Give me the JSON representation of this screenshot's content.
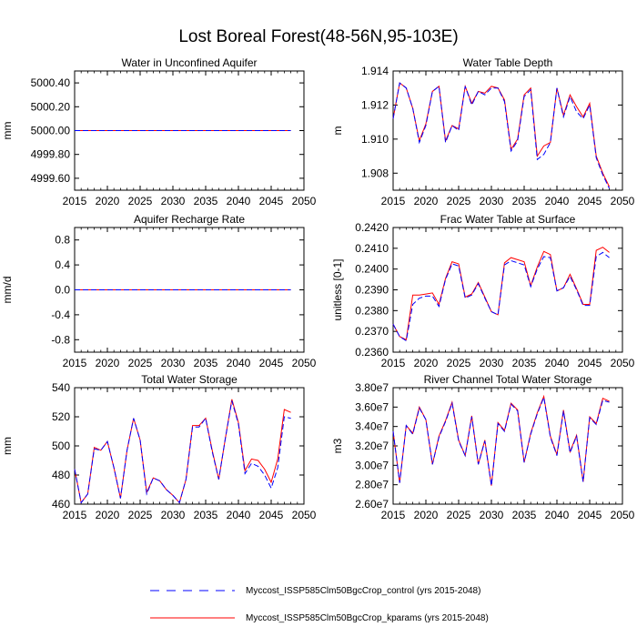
{
  "title": "Lost Boreal Forest(48-56N,95-103E)",
  "colors": {
    "control": "#0000ff",
    "kparams": "#ff0000",
    "axis": "#000000"
  },
  "legend": [
    {
      "label": "Myccost_ISSP585Clm50BgcCrop_control (yrs 2015-2048)",
      "color": "#0000ff",
      "dash": true
    },
    {
      "label": "Myccost_ISSP585Clm50BgcCrop_kparams (yrs 2015-2048)",
      "color": "#ff0000",
      "dash": false
    }
  ],
  "chart_data": [
    {
      "type": "line",
      "title": "Water in Unconfined Aquifer",
      "ylabel": "mm",
      "xlim": [
        2015,
        2050
      ],
      "xticks": [
        2015,
        2020,
        2025,
        2030,
        2035,
        2040,
        2045,
        2050
      ],
      "xtick_labels": [
        "2015",
        "2020",
        "2025",
        "2030",
        "2035",
        "2040",
        "2045",
        "2050"
      ],
      "ylim": [
        4999.5,
        5000.5
      ],
      "yticks": [
        4999.6,
        4999.8,
        5000.0,
        5000.2,
        5000.4
      ],
      "ytick_labels": [
        "4999.60",
        "4999.80",
        "5000.00",
        "5000.20",
        "5000.40"
      ],
      "x": [
        2015,
        2016,
        2017,
        2018,
        2019,
        2020,
        2021,
        2022,
        2023,
        2024,
        2025,
        2026,
        2027,
        2028,
        2029,
        2030,
        2031,
        2032,
        2033,
        2034,
        2035,
        2036,
        2037,
        2038,
        2039,
        2040,
        2041,
        2042,
        2043,
        2044,
        2045,
        2046,
        2047,
        2048
      ],
      "series": [
        {
          "name": "control",
          "values": [
            5000,
            5000,
            5000,
            5000,
            5000,
            5000,
            5000,
            5000,
            5000,
            5000,
            5000,
            5000,
            5000,
            5000,
            5000,
            5000,
            5000,
            5000,
            5000,
            5000,
            5000,
            5000,
            5000,
            5000,
            5000,
            5000,
            5000,
            5000,
            5000,
            5000,
            5000,
            5000,
            5000,
            5000
          ]
        },
        {
          "name": "kparams",
          "values": [
            5000,
            5000,
            5000,
            5000,
            5000,
            5000,
            5000,
            5000,
            5000,
            5000,
            5000,
            5000,
            5000,
            5000,
            5000,
            5000,
            5000,
            5000,
            5000,
            5000,
            5000,
            5000,
            5000,
            5000,
            5000,
            5000,
            5000,
            5000,
            5000,
            5000,
            5000,
            5000,
            5000,
            5000
          ]
        }
      ]
    },
    {
      "type": "line",
      "title": "Water Table Depth",
      "ylabel": "m",
      "xlim": [
        2015,
        2050
      ],
      "xticks": [
        2015,
        2020,
        2025,
        2030,
        2035,
        2040,
        2045,
        2050
      ],
      "xtick_labels": [
        "2015",
        "2020",
        "2025",
        "2030",
        "2035",
        "2040",
        "2045",
        "2050"
      ],
      "ylim": [
        1.907,
        1.914
      ],
      "yticks": [
        1.908,
        1.91,
        1.912,
        1.914
      ],
      "ytick_labels": [
        "1.908",
        "1.910",
        "1.912",
        "1.914"
      ],
      "x": [
        2015,
        2016,
        2017,
        2018,
        2019,
        2020,
        2021,
        2022,
        2023,
        2024,
        2025,
        2026,
        2027,
        2028,
        2029,
        2030,
        2031,
        2032,
        2033,
        2034,
        2035,
        2036,
        2037,
        2038,
        2039,
        2040,
        2041,
        2042,
        2043,
        2044,
        2045,
        2046,
        2047,
        2048
      ],
      "series": [
        {
          "name": "control",
          "values": [
            1.9112,
            1.9133,
            1.913,
            1.9118,
            1.9098,
            1.9108,
            1.9128,
            1.9131,
            1.9098,
            1.9108,
            1.9105,
            1.9131,
            1.912,
            1.9128,
            1.9126,
            1.913,
            1.913,
            1.9122,
            1.9093,
            1.9099,
            1.9125,
            1.9129,
            1.9088,
            1.9091,
            1.9098,
            1.913,
            1.9113,
            1.9125,
            1.9116,
            1.9112,
            1.912,
            1.9089,
            1.9079,
            1.9071
          ]
        },
        {
          "name": "kparams",
          "values": [
            1.9112,
            1.9133,
            1.913,
            1.9118,
            1.9099,
            1.9109,
            1.9128,
            1.9131,
            1.9099,
            1.9108,
            1.9106,
            1.9131,
            1.9121,
            1.9128,
            1.9127,
            1.9131,
            1.913,
            1.9123,
            1.9094,
            1.91,
            1.9126,
            1.913,
            1.909,
            1.9096,
            1.9098,
            1.913,
            1.9114,
            1.9126,
            1.9119,
            1.9113,
            1.9121,
            1.909,
            1.908,
            1.9072
          ]
        }
      ]
    },
    {
      "type": "line",
      "title": "Aquifer Recharge Rate",
      "ylabel": "mm/d",
      "xlim": [
        2015,
        2050
      ],
      "xticks": [
        2015,
        2020,
        2025,
        2030,
        2035,
        2040,
        2045,
        2050
      ],
      "xtick_labels": [
        "2015",
        "2020",
        "2025",
        "2030",
        "2035",
        "2040",
        "2045",
        "2050"
      ],
      "ylim": [
        -1.0,
        1.0
      ],
      "yticks": [
        -0.8,
        -0.4,
        0.0,
        0.4,
        0.8
      ],
      "ytick_labels": [
        "-0.8",
        "-0.4",
        "0.0",
        "0.4",
        "0.8"
      ],
      "x": [
        2015,
        2016,
        2017,
        2018,
        2019,
        2020,
        2021,
        2022,
        2023,
        2024,
        2025,
        2026,
        2027,
        2028,
        2029,
        2030,
        2031,
        2032,
        2033,
        2034,
        2035,
        2036,
        2037,
        2038,
        2039,
        2040,
        2041,
        2042,
        2043,
        2044,
        2045,
        2046,
        2047,
        2048
      ],
      "series": [
        {
          "name": "control",
          "values": [
            0,
            0,
            0,
            0,
            0,
            0,
            0,
            0,
            0,
            0,
            0,
            0,
            0,
            0,
            0,
            0,
            0,
            0,
            0,
            0,
            0,
            0,
            0,
            0,
            0,
            0,
            0,
            0,
            0,
            0,
            0,
            0,
            0,
            0
          ]
        },
        {
          "name": "kparams",
          "values": [
            0,
            0,
            0,
            0,
            0,
            0,
            0,
            0,
            0,
            0,
            0,
            0,
            0,
            0,
            0,
            0,
            0,
            0,
            0,
            0,
            0,
            0,
            0,
            0,
            0,
            0,
            0,
            0,
            0,
            0,
            0,
            0,
            0,
            0
          ]
        }
      ]
    },
    {
      "type": "line",
      "title": "Frac Water Table at Surface",
      "ylabel": "unitless [0-1]",
      "xlim": [
        2015,
        2050
      ],
      "xticks": [
        2015,
        2020,
        2025,
        2030,
        2035,
        2040,
        2045,
        2050
      ],
      "xtick_labels": [
        "2015",
        "2020",
        "2025",
        "2030",
        "2035",
        "2040",
        "2045",
        "2050"
      ],
      "ylim": [
        0.236,
        0.242
      ],
      "yticks": [
        0.236,
        0.237,
        0.238,
        0.239,
        0.24,
        0.241,
        0.242
      ],
      "ytick_labels": [
        "0.2360",
        "0.2370",
        "0.2380",
        "0.2390",
        "0.2400",
        "0.2410",
        "0.2420"
      ],
      "x": [
        2015,
        2016,
        2017,
        2018,
        2019,
        2020,
        2021,
        2022,
        2023,
        2024,
        2025,
        2026,
        2027,
        2028,
        2029,
        2030,
        2031,
        2032,
        2033,
        2034,
        2035,
        2036,
        2037,
        2038,
        2039,
        2040,
        2041,
        2042,
        2043,
        2044,
        2045,
        2046,
        2047,
        2048
      ],
      "series": [
        {
          "name": "control",
          "values": [
            0.23735,
            0.23675,
            0.23655,
            0.2383,
            0.2386,
            0.2387,
            0.2387,
            0.2382,
            0.2395,
            0.24025,
            0.24015,
            0.2386,
            0.23875,
            0.2393,
            0.2386,
            0.23795,
            0.2378,
            0.2402,
            0.2404,
            0.2403,
            0.2402,
            0.23915,
            0.24,
            0.2406,
            0.24055,
            0.23895,
            0.2391,
            0.23965,
            0.239,
            0.23825,
            0.23825,
            0.2406,
            0.2408,
            0.24055
          ]
        },
        {
          "name": "kparams",
          "values": [
            0.23735,
            0.23675,
            0.2366,
            0.23875,
            0.23875,
            0.2388,
            0.23885,
            0.2383,
            0.23955,
            0.24035,
            0.24025,
            0.23865,
            0.2388,
            0.23935,
            0.23865,
            0.23795,
            0.2378,
            0.2403,
            0.24055,
            0.24045,
            0.24035,
            0.2392,
            0.2401,
            0.24085,
            0.2407,
            0.23895,
            0.2391,
            0.23975,
            0.23905,
            0.2383,
            0.2383,
            0.2409,
            0.24105,
            0.2408
          ]
        }
      ]
    },
    {
      "type": "line",
      "title": "Total Water Storage",
      "ylabel": "mm",
      "xlim": [
        2015,
        2050
      ],
      "xticks": [
        2015,
        2020,
        2025,
        2030,
        2035,
        2040,
        2045,
        2050
      ],
      "xtick_labels": [
        "2015",
        "2020",
        "2025",
        "2030",
        "2035",
        "2040",
        "2045",
        "2050"
      ],
      "ylim": [
        460,
        540
      ],
      "yticks": [
        460,
        480,
        500,
        520,
        540
      ],
      "ytick_labels": [
        "460",
        "480",
        "500",
        "520",
        "540"
      ],
      "x": [
        2015,
        2016,
        2017,
        2018,
        2019,
        2020,
        2021,
        2022,
        2023,
        2024,
        2025,
        2026,
        2027,
        2028,
        2029,
        2030,
        2031,
        2032,
        2033,
        2034,
        2035,
        2036,
        2037,
        2038,
        2039,
        2040,
        2041,
        2042,
        2043,
        2044,
        2045,
        2046,
        2047,
        2048
      ],
      "series": [
        {
          "name": "control",
          "values": [
            484,
            461,
            467,
            498,
            497,
            503,
            485,
            464,
            497,
            519,
            504,
            467,
            478,
            476,
            470,
            466,
            461,
            477,
            513,
            513,
            519,
            496,
            477,
            505,
            531,
            515,
            481,
            488,
            486,
            480,
            471,
            485,
            520,
            519
          ]
        },
        {
          "name": "kparams",
          "values": [
            484,
            461,
            467,
            499,
            497,
            503,
            485,
            464,
            497,
            519,
            504,
            468,
            478,
            476,
            470,
            466,
            461,
            477,
            514,
            514,
            519,
            497,
            477,
            505,
            532,
            516,
            483,
            491,
            490,
            484,
            475,
            491,
            525,
            523
          ]
        }
      ]
    },
    {
      "type": "line",
      "title": "River Channel Total Water Storage",
      "ylabel": "m3",
      "xlim": [
        2015,
        2050
      ],
      "xticks": [
        2015,
        2020,
        2025,
        2030,
        2035,
        2040,
        2045,
        2050
      ],
      "xtick_labels": [
        "2015",
        "2020",
        "2025",
        "2030",
        "2035",
        "2040",
        "2045",
        "2050"
      ],
      "ylim": [
        26000000,
        38000000
      ],
      "yticks": [
        26000000,
        28000000,
        30000000,
        32000000,
        34000000,
        36000000,
        38000000
      ],
      "ytick_labels": [
        "2.60e7",
        "2.80e7",
        "3.00e7",
        "3.20e7",
        "3.40e7",
        "3.60e7",
        "3.80e7"
      ],
      "x": [
        2015,
        2016,
        2017,
        2018,
        2019,
        2020,
        2021,
        2022,
        2023,
        2024,
        2025,
        2026,
        2027,
        2028,
        2029,
        2030,
        2031,
        2032,
        2033,
        2034,
        2035,
        2036,
        2037,
        2038,
        2039,
        2040,
        2041,
        2042,
        2043,
        2044,
        2045,
        2046,
        2047,
        2048
      ],
      "series": [
        {
          "name": "control",
          "values": [
            33500000,
            28200000,
            34100000,
            33200000,
            35900000,
            34700000,
            30100000,
            32900000,
            34500000,
            36400000,
            32500000,
            31000000,
            35000000,
            30100000,
            32500000,
            27900000,
            34300000,
            33500000,
            36300000,
            35600000,
            30300000,
            33200000,
            35300000,
            37000000,
            32900000,
            31000000,
            35600000,
            31300000,
            33000000,
            28300000,
            34900000,
            34200000,
            36700000,
            36500000
          ]
        },
        {
          "name": "kparams",
          "values": [
            33500000,
            28200000,
            34100000,
            33300000,
            36000000,
            34700000,
            30100000,
            33000000,
            34600000,
            36500000,
            32600000,
            31000000,
            35100000,
            30100000,
            32600000,
            27900000,
            34400000,
            33600000,
            36400000,
            35700000,
            30300000,
            33300000,
            35400000,
            37100000,
            33000000,
            31100000,
            35700000,
            31400000,
            33100000,
            28300000,
            35000000,
            34300000,
            36900000,
            36600000
          ]
        }
      ]
    }
  ]
}
